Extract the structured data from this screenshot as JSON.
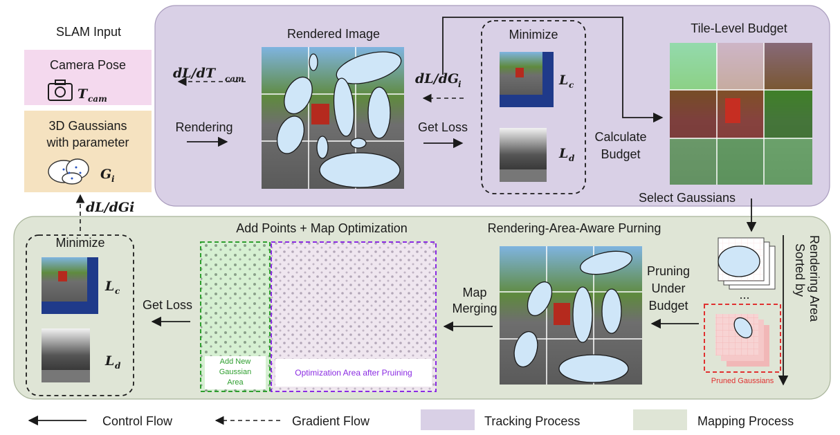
{
  "slam_input": {
    "title": "SLAM Input",
    "camera_pose": "Camera Pose",
    "camera_symbol": "T",
    "camera_symbol_sub": "cam",
    "gaussians_line1": "3D Gaussians",
    "gaussians_line2": "with parameter",
    "gaussian_symbol": "G",
    "gaussian_symbol_sub": "i"
  },
  "tracking": {
    "rendered_image": "Rendered Image",
    "grad_cam": "dL/dT",
    "grad_cam_sub": "cam",
    "rendering": "Rendering",
    "grad_g": "dL/dG",
    "grad_g_sub": "i",
    "get_loss": "Get Loss",
    "minimize": "Minimize",
    "loss_c": "L",
    "loss_c_sub": "c",
    "loss_d": "L",
    "loss_d_sub": "d",
    "calculate_line1": "Calculate",
    "calculate_line2": "Budget",
    "tile_budget": "Tile-Level Budget",
    "select_gaussians": "Select Gaussians"
  },
  "mapping": {
    "grad_gi": "dL/dGi",
    "minimize": "Minimize",
    "loss_c": "L",
    "loss_c_sub": "c",
    "loss_d": "L",
    "loss_d_sub": "d",
    "get_loss": "Get Loss",
    "add_points": "Add Points + Map Optimization",
    "add_new_line1": "Add New",
    "add_new_line2": "Gaussian",
    "add_new_line3": "Area",
    "optimization_area": "Optimization Area after Pruining",
    "map_line1": "Map",
    "map_line2": "Merging",
    "purning_title": "Rendering-Area-Aware Purning",
    "pruning_line1": "Pruning",
    "pruning_line2": "Under",
    "pruning_line3": "Budget",
    "dots": "...",
    "pruned_gaussians": "Pruned Gaussians",
    "sorted_line1": "Sorted by",
    "sorted_line2": "Rendering Area"
  },
  "legend": {
    "control_flow": "Control Flow",
    "gradient_flow": "Gradient Flow",
    "tracking_process": "Tracking Process",
    "mapping_process": "Mapping Process"
  },
  "colors": {
    "tracking_bg": "#d9d0e6",
    "mapping_bg": "#dfe5d6",
    "camera_box": "#f4d9ee",
    "gaussian_box": "#f5e2c0",
    "ellipse_fill": "#cfe6f8",
    "new_area_green": "#2e9e2e",
    "opt_area_purple": "#8a2be2",
    "pruned_red": "#e03030"
  }
}
